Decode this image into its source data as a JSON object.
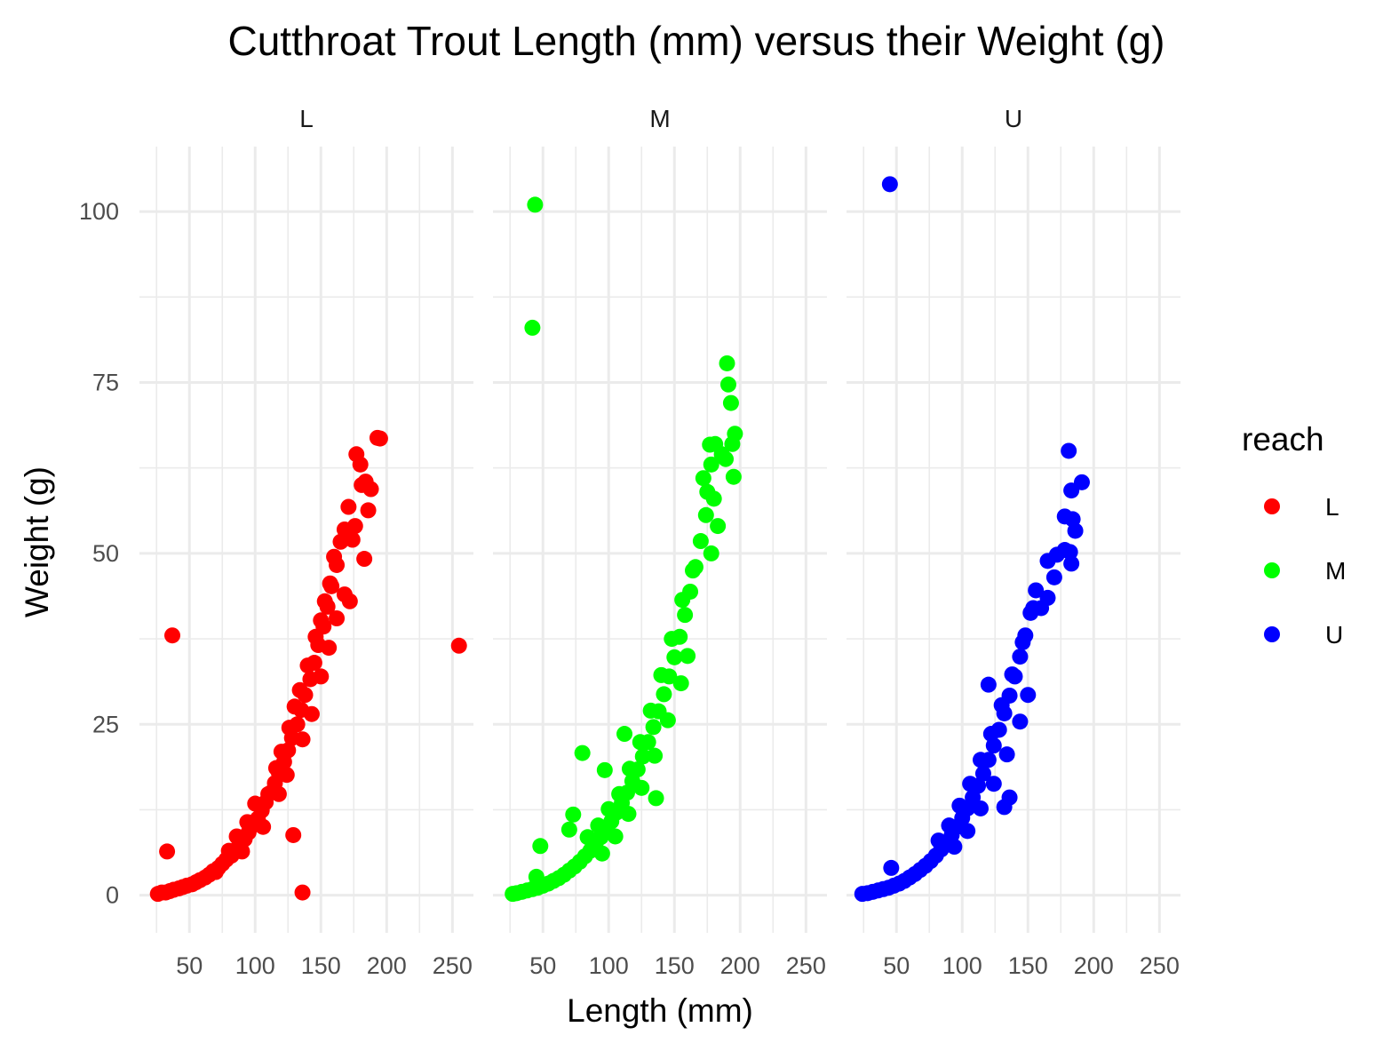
{
  "chart_data": {
    "type": "scatter",
    "title": "Cutthroat Trout Length (mm) versus their Weight (g)",
    "xlabel": "Length (mm)",
    "ylabel": "Weight (g)",
    "xlim": [
      12,
      266
    ],
    "ylim": [
      -5.5,
      109.5
    ],
    "x_ticks": [
      50,
      100,
      150,
      200,
      250
    ],
    "x_tick_labels": [
      "50",
      "100",
      "150",
      "200",
      "250"
    ],
    "x_minor_ticks": [
      25,
      75,
      125,
      175,
      225
    ],
    "y_ticks": [
      0,
      25,
      50,
      75,
      100
    ],
    "y_tick_labels": [
      "0",
      "25",
      "50",
      "75",
      "100"
    ],
    "y_minor_ticks": [
      12.5,
      37.5,
      62.5,
      87.5
    ],
    "grid": true,
    "facet_by": "reach",
    "facets": [
      "L",
      "M",
      "U"
    ],
    "legend": {
      "title": "reach",
      "placement": "right",
      "entries": [
        {
          "label": "L",
          "color": "#FF0000"
        },
        {
          "label": "M",
          "color": "#00FF00"
        },
        {
          "label": "U",
          "color": "#0000FF"
        }
      ]
    },
    "series": [
      {
        "name": "L",
        "facet": "L",
        "color": "#FF0000",
        "points": [
          [
            26,
            0.2
          ],
          [
            29,
            0.4
          ],
          [
            32,
            0.4
          ],
          [
            35,
            0.6
          ],
          [
            38,
            0.8
          ],
          [
            42,
            1.0
          ],
          [
            45,
            1.2
          ],
          [
            48,
            1.4
          ],
          [
            52,
            1.6
          ],
          [
            55,
            1.9
          ],
          [
            58,
            2.2
          ],
          [
            62,
            2.6
          ],
          [
            65,
            3.0
          ],
          [
            68,
            3.5
          ],
          [
            72,
            4.0
          ],
          [
            75,
            4.6
          ],
          [
            78,
            5.2
          ],
          [
            82,
            5.8
          ],
          [
            85,
            6.6
          ],
          [
            88,
            7.4
          ],
          [
            92,
            8.2
          ],
          [
            95,
            9.2
          ],
          [
            98,
            10.2
          ],
          [
            102,
            11.2
          ],
          [
            105,
            12.4
          ],
          [
            108,
            13.6
          ],
          [
            112,
            15.0
          ],
          [
            115,
            16.4
          ],
          [
            118,
            17.9
          ],
          [
            122,
            19.5
          ],
          [
            125,
            21.2
          ],
          [
            128,
            23.0
          ],
          [
            132,
            25.0
          ],
          [
            135,
            27.1
          ],
          [
            138,
            29.3
          ],
          [
            142,
            31.6
          ],
          [
            145,
            34.0
          ],
          [
            148,
            36.6
          ],
          [
            152,
            39.3
          ],
          [
            155,
            42.2
          ],
          [
            158,
            45.2
          ],
          [
            162,
            48.3
          ],
          [
            165,
            51.7
          ],
          [
            80,
            6.5
          ],
          [
            86,
            8.6
          ],
          [
            94,
            10.7
          ],
          [
            100,
            13.4
          ],
          [
            110,
            14.8
          ],
          [
            116,
            18.6
          ],
          [
            120,
            21.0
          ],
          [
            126,
            24.5
          ],
          [
            130,
            27.6
          ],
          [
            134,
            30.0
          ],
          [
            140,
            33.6
          ],
          [
            146,
            37.8
          ],
          [
            150,
            40.2
          ],
          [
            153,
            43.0
          ],
          [
            157,
            45.6
          ],
          [
            160,
            49.5
          ],
          [
            70,
            3.4
          ],
          [
            90,
            6.4
          ],
          [
            106,
            10.0
          ],
          [
            118,
            14.8
          ],
          [
            124,
            17.6
          ],
          [
            136,
            22.8
          ],
          [
            143,
            26.5
          ],
          [
            150,
            32.0
          ],
          [
            156,
            36.2
          ],
          [
            162,
            40.5
          ],
          [
            168,
            44.0
          ],
          [
            168,
            53.5
          ],
          [
            171,
            56.8
          ],
          [
            174,
            52.0
          ],
          [
            176,
            54.0
          ],
          [
            177,
            64.5
          ],
          [
            180,
            63.0
          ],
          [
            181,
            60.0
          ],
          [
            184,
            60.5
          ],
          [
            186,
            56.3
          ],
          [
            188,
            59.4
          ],
          [
            193,
            66.9
          ],
          [
            195,
            66.8
          ],
          [
            183,
            49.2
          ],
          [
            172,
            43.0
          ],
          [
            129,
            8.8
          ],
          [
            136,
            0.4
          ],
          [
            33,
            6.4
          ],
          [
            37,
            38.0
          ],
          [
            255,
            36.5
          ]
        ]
      },
      {
        "name": "M",
        "facet": "M",
        "color": "#00FF00",
        "points": [
          [
            27,
            0.2
          ],
          [
            30,
            0.3
          ],
          [
            34,
            0.5
          ],
          [
            38,
            0.7
          ],
          [
            42,
            0.9
          ],
          [
            46,
            1.1
          ],
          [
            50,
            1.4
          ],
          [
            54,
            1.7
          ],
          [
            58,
            2.1
          ],
          [
            62,
            2.5
          ],
          [
            66,
            3.0
          ],
          [
            70,
            3.6
          ],
          [
            74,
            4.2
          ],
          [
            78,
            4.9
          ],
          [
            82,
            5.7
          ],
          [
            86,
            6.5
          ],
          [
            90,
            7.5
          ],
          [
            94,
            8.5
          ],
          [
            98,
            9.6
          ],
          [
            102,
            10.8
          ],
          [
            106,
            12.1
          ],
          [
            110,
            13.5
          ],
          [
            114,
            15.0
          ],
          [
            118,
            16.7
          ],
          [
            122,
            18.4
          ],
          [
            126,
            20.3
          ],
          [
            130,
            22.4
          ],
          [
            134,
            24.6
          ],
          [
            138,
            26.9
          ],
          [
            142,
            29.4
          ],
          [
            146,
            32.0
          ],
          [
            150,
            34.8
          ],
          [
            154,
            37.8
          ],
          [
            158,
            41.0
          ],
          [
            162,
            44.4
          ],
          [
            166,
            48.0
          ],
          [
            170,
            51.8
          ],
          [
            174,
            55.6
          ],
          [
            84,
            8.5
          ],
          [
            92,
            10.2
          ],
          [
            100,
            12.6
          ],
          [
            108,
            14.8
          ],
          [
            116,
            18.5
          ],
          [
            124,
            22.4
          ],
          [
            132,
            27.0
          ],
          [
            140,
            32.2
          ],
          [
            148,
            37.5
          ],
          [
            156,
            43.2
          ],
          [
            164,
            47.5
          ],
          [
            95,
            6.1
          ],
          [
            105,
            8.6
          ],
          [
            115,
            11.9
          ],
          [
            125,
            15.7
          ],
          [
            135,
            20.4
          ],
          [
            145,
            25.6
          ],
          [
            155,
            31.0
          ],
          [
            160,
            35.0
          ],
          [
            73,
            11.8
          ],
          [
            70,
            9.6
          ],
          [
            80,
            20.8
          ],
          [
            97,
            18.3
          ],
          [
            112,
            23.6
          ],
          [
            136,
            14.2
          ],
          [
            48,
            7.2
          ],
          [
            45,
            2.7
          ],
          [
            178,
            50.0
          ],
          [
            172,
            61.0
          ],
          [
            175,
            59.0
          ],
          [
            178,
            63.0
          ],
          [
            180,
            58.0
          ],
          [
            183,
            54.0
          ],
          [
            177,
            65.9
          ],
          [
            181,
            66.0
          ],
          [
            186,
            64.5
          ],
          [
            189,
            63.8
          ],
          [
            190,
            77.8
          ],
          [
            191,
            74.7
          ],
          [
            193,
            72.0
          ],
          [
            195,
            61.2
          ],
          [
            196,
            67.5
          ],
          [
            194,
            66.0
          ],
          [
            42,
            83.0
          ],
          [
            44,
            101.0
          ]
        ]
      },
      {
        "name": "U",
        "facet": "U",
        "color": "#0000FF",
        "points": [
          [
            24,
            0.2
          ],
          [
            28,
            0.3
          ],
          [
            32,
            0.5
          ],
          [
            36,
            0.7
          ],
          [
            40,
            0.9
          ],
          [
            44,
            1.1
          ],
          [
            48,
            1.4
          ],
          [
            52,
            1.7
          ],
          [
            56,
            2.1
          ],
          [
            60,
            2.6
          ],
          [
            64,
            3.1
          ],
          [
            68,
            3.7
          ],
          [
            72,
            4.3
          ],
          [
            76,
            5.0
          ],
          [
            80,
            5.8
          ],
          [
            84,
            6.7
          ],
          [
            88,
            7.7
          ],
          [
            92,
            8.8
          ],
          [
            96,
            10.0
          ],
          [
            100,
            11.3
          ],
          [
            104,
            12.7
          ],
          [
            108,
            14.3
          ],
          [
            112,
            16.0
          ],
          [
            116,
            17.8
          ],
          [
            120,
            19.8
          ],
          [
            124,
            21.9
          ],
          [
            128,
            24.2
          ],
          [
            132,
            26.6
          ],
          [
            136,
            29.2
          ],
          [
            140,
            32.0
          ],
          [
            144,
            34.9
          ],
          [
            148,
            38.0
          ],
          [
            152,
            41.3
          ],
          [
            156,
            44.6
          ],
          [
            82,
            8.0
          ],
          [
            90,
            10.2
          ],
          [
            98,
            13.1
          ],
          [
            106,
            16.3
          ],
          [
            114,
            19.8
          ],
          [
            122,
            23.6
          ],
          [
            130,
            27.8
          ],
          [
            138,
            32.3
          ],
          [
            146,
            37.0
          ],
          [
            154,
            42.0
          ],
          [
            94,
            7.1
          ],
          [
            104,
            9.4
          ],
          [
            114,
            12.7
          ],
          [
            124,
            16.3
          ],
          [
            134,
            20.6
          ],
          [
            144,
            25.4
          ],
          [
            150,
            29.3
          ],
          [
            120,
            30.8
          ],
          [
            136,
            14.3
          ],
          [
            132,
            12.9
          ],
          [
            46,
            4.0
          ],
          [
            160,
            42.0
          ],
          [
            165,
            43.5
          ],
          [
            170,
            46.5
          ],
          [
            165,
            48.9
          ],
          [
            172,
            49.8
          ],
          [
            178,
            50.5
          ],
          [
            182,
            50.2
          ],
          [
            183,
            48.5
          ],
          [
            178,
            55.4
          ],
          [
            184,
            55.0
          ],
          [
            183,
            59.2
          ],
          [
            186,
            53.3
          ],
          [
            181,
            65.0
          ],
          [
            191,
            60.4
          ],
          [
            45,
            104.0
          ]
        ]
      }
    ]
  }
}
